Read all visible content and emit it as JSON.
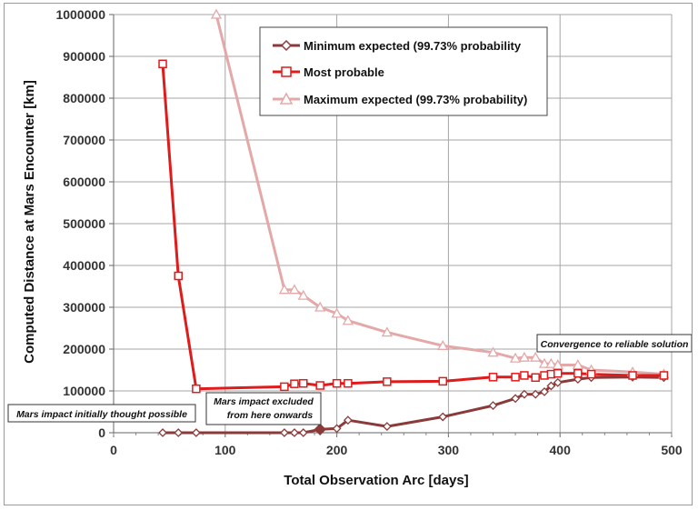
{
  "chart_data": {
    "type": "line",
    "title": "",
    "xlabel": "Total Observation Arc [days]",
    "ylabel": "Computed Distance at Mars Encounter [km]",
    "xlim": [
      0,
      500
    ],
    "ylim": [
      0,
      1000000
    ],
    "x_ticks": [
      "0",
      "100",
      "200",
      "300",
      "400",
      "500"
    ],
    "y_ticks": [
      "0",
      "100000",
      "200000",
      "300000",
      "400000",
      "500000",
      "600000",
      "700000",
      "800000",
      "900000",
      "1000000"
    ],
    "grid": true,
    "legend_position": "top-center",
    "series": [
      {
        "name": "Minimum expected (99.73% probability",
        "color": "#8b3a3a",
        "marker": "diamond",
        "points": [
          [
            44,
            0
          ],
          [
            58,
            0
          ],
          [
            74,
            0
          ],
          [
            153,
            0
          ],
          [
            162,
            0
          ],
          [
            170,
            0
          ],
          [
            185,
            8000
          ],
          [
            200,
            10000
          ],
          [
            210,
            30000
          ],
          [
            245,
            15000
          ],
          [
            295,
            38000
          ],
          [
            340,
            65000
          ],
          [
            360,
            82000
          ],
          [
            368,
            92000
          ],
          [
            378,
            92000
          ],
          [
            386,
            98000
          ],
          [
            392,
            112000
          ],
          [
            398,
            120000
          ],
          [
            416,
            128000
          ],
          [
            428,
            132000
          ],
          [
            465,
            133000
          ],
          [
            493,
            132000
          ]
        ]
      },
      {
        "name": "Most probable",
        "color": "#e01b1b",
        "marker": "square",
        "points": [
          [
            44,
            882000
          ],
          [
            58,
            375000
          ],
          [
            74,
            105000
          ],
          [
            153,
            110000
          ],
          [
            162,
            117000
          ],
          [
            170,
            118000
          ],
          [
            185,
            113000
          ],
          [
            200,
            118000
          ],
          [
            210,
            118000
          ],
          [
            245,
            122000
          ],
          [
            295,
            123000
          ],
          [
            340,
            133000
          ],
          [
            360,
            133000
          ],
          [
            368,
            137000
          ],
          [
            378,
            132000
          ],
          [
            386,
            137000
          ],
          [
            392,
            140000
          ],
          [
            398,
            142000
          ],
          [
            416,
            142000
          ],
          [
            428,
            140000
          ],
          [
            465,
            137000
          ],
          [
            493,
            137000
          ]
        ]
      },
      {
        "name": "Maximum expected (99.73% probability)",
        "color": "#e5a8a8",
        "marker": "triangle",
        "points": [
          [
            92,
            1000000
          ],
          [
            153,
            342000
          ],
          [
            162,
            342000
          ],
          [
            170,
            328000
          ],
          [
            185,
            300000
          ],
          [
            200,
            285000
          ],
          [
            210,
            268000
          ],
          [
            245,
            240000
          ],
          [
            295,
            208000
          ],
          [
            340,
            192000
          ],
          [
            360,
            178000
          ],
          [
            368,
            180000
          ],
          [
            378,
            180000
          ],
          [
            386,
            165000
          ],
          [
            392,
            165000
          ],
          [
            398,
            162000
          ],
          [
            416,
            162000
          ],
          [
            428,
            150000
          ],
          [
            465,
            145000
          ],
          [
            493,
            140000
          ]
        ]
      }
    ],
    "highlight_point": {
      "x": 185,
      "y": 8000,
      "color": "#8b3a3a"
    },
    "annotations": [
      {
        "text": "Mars impact initially thought possible"
      },
      {
        "text": "Mars impact excluded"
      },
      {
        "text": "from here onwards"
      },
      {
        "text": "Convergence to reliable solution"
      }
    ]
  }
}
